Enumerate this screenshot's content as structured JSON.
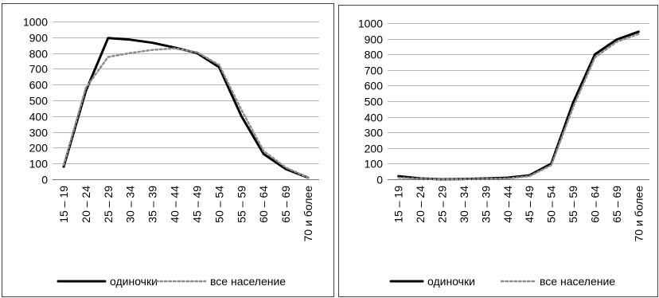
{
  "colors": {
    "series_solid": "#000000",
    "series_dotted": "#8c8c8c",
    "grid": "#b8b8b8",
    "frame": "#404040"
  },
  "chart_data": [
    {
      "type": "line",
      "title": "",
      "xlabel": "",
      "ylabel": "",
      "ylim": [
        0,
        1000
      ],
      "yticks": [
        "0",
        "100",
        "200",
        "300",
        "400",
        "500",
        "600",
        "700",
        "800",
        "900",
        "1000"
      ],
      "grid": true,
      "legend_position": "bottom",
      "categories": [
        "15 – 19",
        "20 – 24",
        "25 – 29",
        "30 – 34",
        "35 – 39",
        "40 – 44",
        "45 – 49",
        "50 – 54",
        "55 – 59",
        "60 – 64",
        "65 – 69",
        "70 и более"
      ],
      "series": [
        {
          "name": "одиночки",
          "style": "solid",
          "values": [
            80,
            560,
            895,
            885,
            865,
            835,
            800,
            710,
            400,
            160,
            65,
            10
          ]
        },
        {
          "name": "все население",
          "style": "dotted",
          "values": [
            90,
            580,
            775,
            800,
            820,
            830,
            805,
            725,
            440,
            180,
            75,
            10
          ]
        }
      ]
    },
    {
      "type": "line",
      "title": "",
      "xlabel": "",
      "ylabel": "",
      "ylim": [
        0,
        1000
      ],
      "yticks": [
        "0",
        "100",
        "200",
        "300",
        "400",
        "500",
        "600",
        "700",
        "800",
        "900",
        "1000"
      ],
      "grid": true,
      "legend_position": "bottom",
      "categories": [
        "15 – 19",
        "20 – 24",
        "25 – 29",
        "30 – 34",
        "35 – 39",
        "40 – 44",
        "45 – 49",
        "50 – 54",
        "55 – 59",
        "60 – 64",
        "65 – 69",
        "70 и более"
      ],
      "series": [
        {
          "name": "одиночки",
          "style": "solid",
          "values": [
            20,
            5,
            0,
            2,
            5,
            10,
            25,
            100,
            490,
            800,
            895,
            945
          ]
        },
        {
          "name": "все население",
          "style": "dotted",
          "values": [
            10,
            3,
            0,
            1,
            3,
            5,
            20,
            90,
            460,
            780,
            880,
            930
          ]
        }
      ]
    }
  ]
}
